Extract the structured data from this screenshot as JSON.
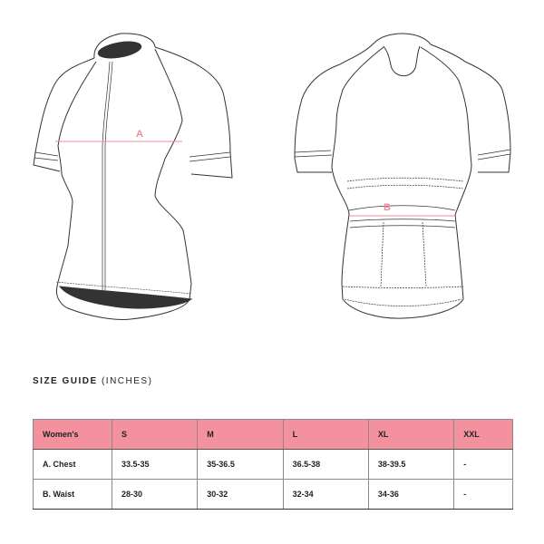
{
  "diagram": {
    "front_label": "A",
    "back_label": "B",
    "measure_color": "#f08a98"
  },
  "size_guide": {
    "title": "SIZE GUIDE",
    "unit": "(INCHES)",
    "header_color": "#f4919e",
    "columns": [
      "Women's",
      "S",
      "M",
      "L",
      "XL",
      "XXL"
    ],
    "rows": [
      {
        "label": "A. Chest",
        "values": [
          "33.5-35",
          "35-36.5",
          "36.5-38",
          "38-39.5",
          "-"
        ]
      },
      {
        "label": "B. Waist",
        "values": [
          "28-30",
          "30-32",
          "32-34",
          "34-36",
          "-"
        ]
      }
    ]
  }
}
